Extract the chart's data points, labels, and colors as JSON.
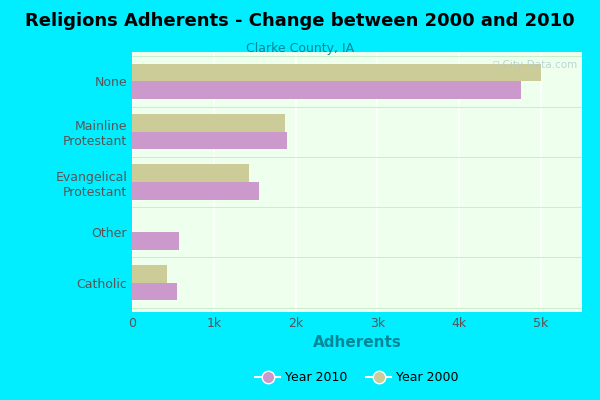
{
  "title": "Religions Adherents - Change between 2000 and 2010",
  "subtitle": "Clarke County, IA",
  "categories": [
    "None",
    "Mainline\nProtestant",
    "Evangelical\nProtestant",
    "Other",
    "Catholic"
  ],
  "values_2010": [
    4750,
    1900,
    1550,
    570,
    550
  ],
  "values_2000": [
    5000,
    1870,
    1430,
    0,
    430
  ],
  "color_2010": "#cc99cc",
  "color_2000": "#cccc99",
  "xlabel": "Adherents",
  "xlabel_color": "#008899",
  "bg_outer": "#00eeff",
  "bg_plot": "#eeffee",
  "xlim": [
    0,
    5500
  ],
  "xticks": [
    0,
    1000,
    2000,
    3000,
    4000,
    5000
  ],
  "xticklabels": [
    "0",
    "1k",
    "2k",
    "3k",
    "4k",
    "5k"
  ],
  "bar_height": 0.35,
  "legend_year2010": "Year 2010",
  "legend_year2000": "Year 2000",
  "watermark": "ⓘ City-Data.com"
}
